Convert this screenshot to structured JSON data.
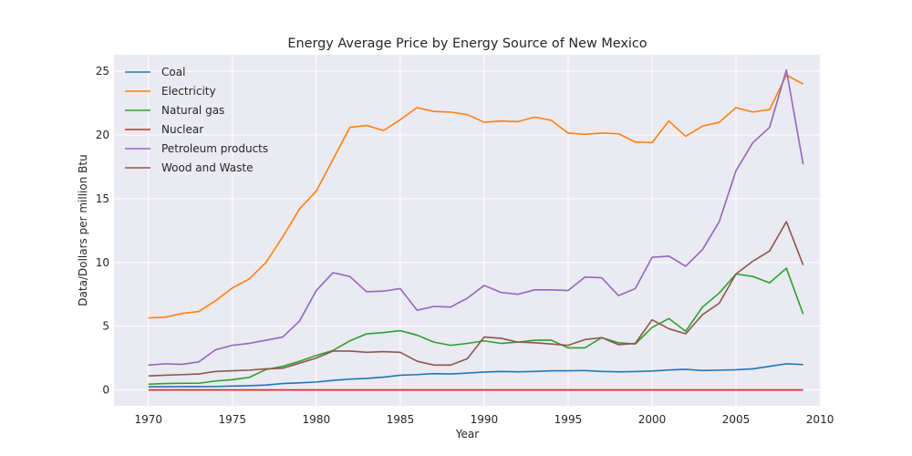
{
  "chart_data": {
    "type": "line",
    "title": "Energy Average Price by Energy Source of New Mexico",
    "xlabel": "Year",
    "ylabel": "Data/Dollars per million Btu",
    "xlim": [
      1967.95,
      2010.05
    ],
    "ylim": [
      -1.25,
      26.3
    ],
    "xticks": [
      1970,
      1975,
      1980,
      1985,
      1990,
      1995,
      2000,
      2005,
      2010
    ],
    "yticks": [
      0,
      5,
      10,
      15,
      20,
      25
    ],
    "grid": true,
    "legend_position": "top-left",
    "x": [
      1970,
      1971,
      1972,
      1973,
      1974,
      1975,
      1976,
      1977,
      1978,
      1979,
      1980,
      1981,
      1982,
      1983,
      1984,
      1985,
      1986,
      1987,
      1988,
      1989,
      1990,
      1991,
      1992,
      1993,
      1994,
      1995,
      1996,
      1997,
      1998,
      1999,
      2000,
      2001,
      2002,
      2003,
      2004,
      2005,
      2006,
      2007,
      2008,
      2009
    ],
    "series": [
      {
        "name": "Coal",
        "color": "#1f77b4",
        "values": [
          0.25,
          0.25,
          0.26,
          0.26,
          0.27,
          0.3,
          0.33,
          0.38,
          0.5,
          0.55,
          0.62,
          0.75,
          0.85,
          0.9,
          1.0,
          1.15,
          1.2,
          1.28,
          1.25,
          1.32,
          1.4,
          1.45,
          1.42,
          1.45,
          1.5,
          1.5,
          1.52,
          1.45,
          1.42,
          1.44,
          1.48,
          1.56,
          1.62,
          1.52,
          1.55,
          1.58,
          1.65,
          1.85,
          2.05,
          1.98
        ]
      },
      {
        "name": "Electricity",
        "color": "#ff7f0e",
        "values": [
          5.65,
          5.7,
          6.0,
          6.15,
          7.0,
          8.0,
          8.7,
          10.0,
          12.0,
          14.2,
          15.6,
          18.1,
          20.6,
          20.75,
          20.35,
          21.2,
          22.15,
          21.85,
          21.8,
          21.6,
          21.0,
          21.1,
          21.05,
          21.4,
          21.15,
          20.15,
          20.05,
          20.15,
          20.1,
          19.45,
          19.4,
          21.1,
          19.9,
          20.7,
          21.0,
          22.15,
          21.8,
          22.0,
          24.7,
          24.0
        ]
      },
      {
        "name": "Natural gas",
        "color": "#2ca02c",
        "values": [
          0.45,
          0.5,
          0.52,
          0.52,
          0.7,
          0.8,
          0.98,
          1.6,
          1.85,
          2.25,
          2.7,
          3.1,
          3.85,
          4.4,
          4.5,
          4.65,
          4.3,
          3.75,
          3.5,
          3.65,
          3.85,
          3.65,
          3.75,
          3.9,
          3.9,
          3.3,
          3.3,
          4.1,
          3.7,
          3.6,
          4.9,
          5.6,
          4.6,
          6.5,
          7.6,
          9.1,
          8.9,
          8.4,
          9.55,
          5.95
        ]
      },
      {
        "name": "Nuclear",
        "color": "#d62728",
        "values": [
          0,
          0,
          0,
          0,
          0,
          0,
          0,
          0,
          0,
          0,
          0,
          0,
          0,
          0,
          0,
          0,
          0,
          0,
          0,
          0,
          0,
          0,
          0,
          0,
          0,
          0,
          0,
          0,
          0,
          0,
          0,
          0,
          0,
          0,
          0,
          0,
          0,
          0,
          0,
          0
        ]
      },
      {
        "name": "Petroleum products",
        "color": "#9467bd",
        "values": [
          1.95,
          2.05,
          2.0,
          2.2,
          3.15,
          3.5,
          3.65,
          3.9,
          4.15,
          5.4,
          7.8,
          9.2,
          8.9,
          7.7,
          7.75,
          7.95,
          6.25,
          6.55,
          6.5,
          7.2,
          8.2,
          7.65,
          7.5,
          7.85,
          7.85,
          7.8,
          8.85,
          8.8,
          7.4,
          7.95,
          10.4,
          10.5,
          9.7,
          11.0,
          13.2,
          17.2,
          19.4,
          20.6,
          25.1,
          17.7
        ]
      },
      {
        "name": "Wood and Waste",
        "color": "#8c564b",
        "values": [
          1.1,
          1.15,
          1.2,
          1.25,
          1.45,
          1.5,
          1.55,
          1.65,
          1.7,
          2.1,
          2.5,
          3.05,
          3.05,
          2.95,
          3.0,
          2.95,
          2.25,
          1.95,
          1.95,
          2.45,
          4.15,
          4.05,
          3.75,
          3.7,
          3.6,
          3.5,
          3.95,
          4.1,
          3.55,
          3.65,
          5.5,
          4.8,
          4.4,
          5.9,
          6.8,
          9.1,
          10.1,
          10.9,
          13.2,
          9.8
        ]
      }
    ]
  }
}
